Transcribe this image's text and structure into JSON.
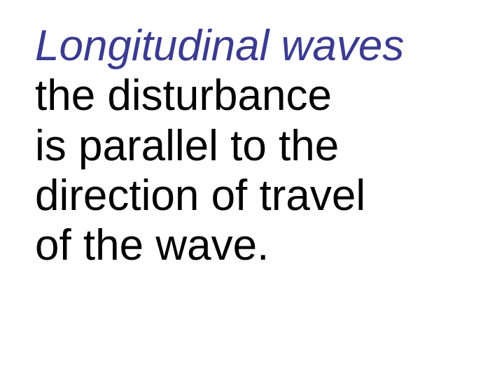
{
  "slide": {
    "title": "Longitudinal waves",
    "title_color": "#3b3b8f",
    "title_fontsize": 62,
    "title_fontstyle": "italic",
    "title_fontweight": "normal",
    "body_lines": [
      "the disturbance",
      "is parallel to the",
      "direction of travel",
      "of the wave."
    ],
    "body_color": "#000000",
    "body_fontsize": 62,
    "body_fontweight": "normal",
    "background_color": "#ffffff",
    "font_family": "Arial, Helvetica, sans-serif"
  }
}
